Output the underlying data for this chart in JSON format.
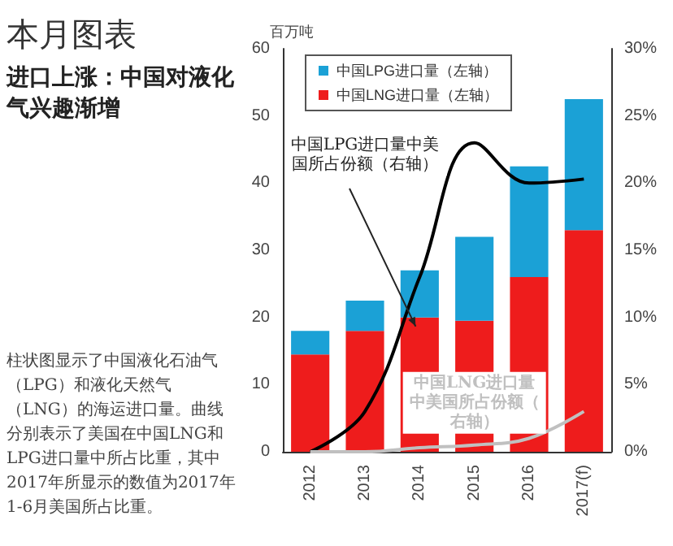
{
  "chart_data": {
    "type": "bar",
    "title": "本月图表",
    "subtitle": "进口上涨：中国对液化气兴趣渐增",
    "ylabel": "百万吨",
    "annotations": [
      "柱状图显示了中国液化石油气（LPG）和液化天然气（LNG）的海运进口量。曲线分别表示了美国在中国LNG和LPG进口量中所占比重，其中2017年所显示的数值为2017年1-6月美国所占比重。"
    ],
    "categories": [
      "2012",
      "2013",
      "2014",
      "2015",
      "2016",
      "2017(f)"
    ],
    "stacked": true,
    "series": [
      {
        "name": "中国LNG进口量（左轴）",
        "color": "#ee1c1c",
        "values": [
          14.5,
          18,
          20,
          19.5,
          26,
          33
        ]
      },
      {
        "name": "中国LPG进口量（左轴）",
        "color": "#1ba1d6",
        "values": [
          3.5,
          4.5,
          7,
          12.5,
          16.5,
          19.5
        ]
      },
      {
        "name": "中国LPG进口量中美国所占份额（右轴）",
        "type": "line",
        "axis": "y2",
        "color": "#000000",
        "values": [
          0,
          3,
          13,
          23,
          20,
          20.3
        ]
      },
      {
        "name": "中国LNG进口量中美国所占份额（右轴）",
        "type": "line",
        "axis": "y2",
        "color": "#c0c0c0",
        "values": [
          0,
          0,
          0.3,
          0.5,
          1,
          3
        ]
      }
    ],
    "ylim": [
      0,
      60
    ],
    "yticks": [
      0,
      10,
      20,
      30,
      40,
      50,
      60
    ],
    "y2lim": [
      0,
      30
    ],
    "y2ticks": [
      {
        "value": 0,
        "label": "0%"
      },
      {
        "value": 5,
        "label": "5%"
      },
      {
        "value": 10,
        "label": "10%"
      },
      {
        "value": 15,
        "label": "15%"
      },
      {
        "value": 20,
        "label": "20%"
      },
      {
        "value": 25,
        "label": "25%"
      },
      {
        "value": 30,
        "label": "30%"
      }
    ],
    "legend": "top left",
    "grid": false,
    "marker": "none",
    "line_style": "solid"
  }
}
